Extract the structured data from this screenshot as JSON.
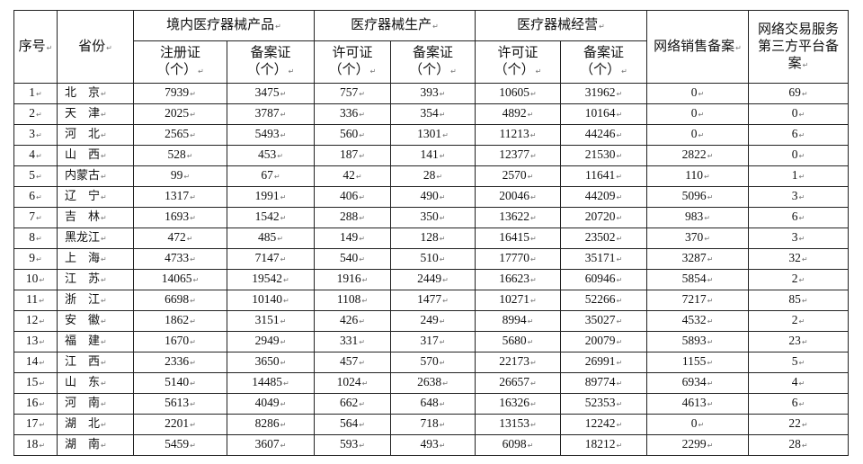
{
  "headers": {
    "seq": "序号",
    "province": "省份",
    "group_domestic": "境内医疗器械产品",
    "group_production": "医疗器械生产",
    "group_operation": "医疗器械经营",
    "online_sales": "网络销售备案",
    "third_party": "网络交易服务第三方平台备案",
    "registration": "注册证（个）",
    "filing": "备案证（个）",
    "license": "许可证（个）"
  },
  "rows": [
    {
      "no": "1",
      "prov": "北　京",
      "c": [
        "7939",
        "3475",
        "757",
        "393",
        "10605",
        "31962",
        "0",
        "69"
      ]
    },
    {
      "no": "2",
      "prov": "天　津",
      "c": [
        "2025",
        "3787",
        "336",
        "354",
        "4892",
        "10164",
        "0",
        "0"
      ]
    },
    {
      "no": "3",
      "prov": "河　北",
      "c": [
        "2565",
        "5493",
        "560",
        "1301",
        "11213",
        "44246",
        "0",
        "6"
      ]
    },
    {
      "no": "4",
      "prov": "山　西",
      "c": [
        "528",
        "453",
        "187",
        "141",
        "12377",
        "21530",
        "2822",
        "0"
      ]
    },
    {
      "no": "5",
      "prov": "内蒙古",
      "c": [
        "99",
        "67",
        "42",
        "28",
        "2570",
        "11641",
        "110",
        "1"
      ]
    },
    {
      "no": "6",
      "prov": "辽　宁",
      "c": [
        "1317",
        "1991",
        "406",
        "490",
        "20046",
        "44209",
        "5096",
        "3"
      ]
    },
    {
      "no": "7",
      "prov": "吉　林",
      "c": [
        "1693",
        "1542",
        "288",
        "350",
        "13622",
        "20720",
        "983",
        "6"
      ]
    },
    {
      "no": "8",
      "prov": "黑龙江",
      "c": [
        "472",
        "485",
        "149",
        "128",
        "16415",
        "23502",
        "370",
        "3"
      ]
    },
    {
      "no": "9",
      "prov": "上　海",
      "c": [
        "4733",
        "7147",
        "540",
        "510",
        "17770",
        "35171",
        "3287",
        "32"
      ]
    },
    {
      "no": "10",
      "prov": "江　苏",
      "c": [
        "14065",
        "19542",
        "1916",
        "2449",
        "16623",
        "60946",
        "5854",
        "2"
      ]
    },
    {
      "no": "11",
      "prov": "浙　江",
      "c": [
        "6698",
        "10140",
        "1108",
        "1477",
        "10271",
        "52266",
        "7217",
        "85"
      ]
    },
    {
      "no": "12",
      "prov": "安　徽",
      "c": [
        "1862",
        "3151",
        "426",
        "249",
        "8994",
        "35027",
        "4532",
        "2"
      ]
    },
    {
      "no": "13",
      "prov": "福　建",
      "c": [
        "1670",
        "2949",
        "331",
        "317",
        "5680",
        "20079",
        "5893",
        "23"
      ]
    },
    {
      "no": "14",
      "prov": "江　西",
      "c": [
        "2336",
        "3650",
        "457",
        "570",
        "22173",
        "26991",
        "1155",
        "5"
      ]
    },
    {
      "no": "15",
      "prov": "山　东",
      "c": [
        "5140",
        "14485",
        "1024",
        "2638",
        "26657",
        "89774",
        "6934",
        "4"
      ]
    },
    {
      "no": "16",
      "prov": "河　南",
      "c": [
        "5613",
        "4049",
        "662",
        "648",
        "16326",
        "52353",
        "4613",
        "6"
      ]
    },
    {
      "no": "17",
      "prov": "湖　北",
      "c": [
        "2201",
        "8286",
        "564",
        "718",
        "13153",
        "12242",
        "0",
        "22"
      ]
    },
    {
      "no": "18",
      "prov": "湖　南",
      "c": [
        "5459",
        "3607",
        "593",
        "493",
        "6098",
        "18212",
        "2299",
        "28"
      ]
    }
  ]
}
